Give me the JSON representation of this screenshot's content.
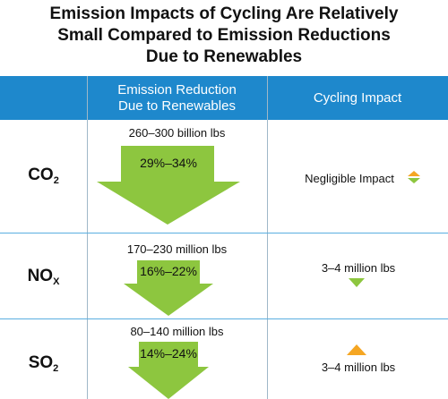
{
  "title": {
    "line1": "Emission Impacts of Cycling Are Relatively",
    "line2": "Small Compared to Emission Reductions",
    "line3": "Due to Renewables"
  },
  "header": {
    "col_reduction": "Emission Reduction Due to Renewables",
    "col_cycling": "Cycling Impact"
  },
  "colors": {
    "header_bg": "#1e88cc",
    "arrow_green": "#8dc63f",
    "arrow_orange": "#f5a623"
  },
  "rows": [
    {
      "pollutant": "CO",
      "pollutant_sub": "2",
      "reduction_amount": "260–300 billion lbs",
      "reduction_percent": "29%–34%",
      "cycling_impact": "Negligible Impact",
      "cycling_icon": "up-down-arrows-icon"
    },
    {
      "pollutant": "NO",
      "pollutant_sub": "X",
      "reduction_amount": "170–230 million lbs",
      "reduction_percent": "16%–22%",
      "cycling_impact": "3–4 million lbs",
      "cycling_icon": "down-arrow-icon"
    },
    {
      "pollutant": "SO",
      "pollutant_sub": "2",
      "reduction_amount": "80–140 million lbs",
      "reduction_percent": "14%–24%",
      "cycling_impact": "3–4 million lbs",
      "cycling_icon": "up-arrow-icon"
    }
  ],
  "chart_data": {
    "type": "table",
    "title": "Emission Impacts of Cycling Are Relatively Small Compared to Emission Reductions Due to Renewables",
    "columns": [
      "",
      "Emission Reduction Due to Renewables",
      "Cycling Impact"
    ],
    "rows": [
      [
        "CO2",
        "260–300 billion lbs (29%–34%)",
        "Negligible Impact"
      ],
      [
        "NOx",
        "170–230 million lbs (16%–22%)",
        "3–4 million lbs"
      ],
      [
        "SO2",
        "80–140 million lbs (14%–24%)",
        "3–4 million lbs"
      ]
    ]
  }
}
